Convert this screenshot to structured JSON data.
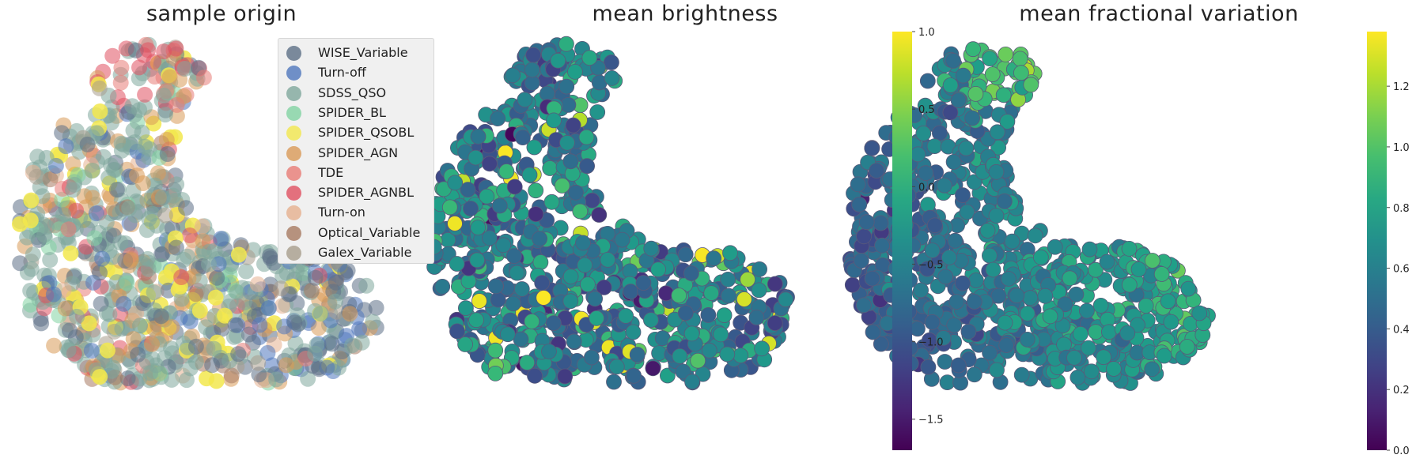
{
  "chart_data": [
    {
      "type": "scatter",
      "title": "sample origin",
      "legend": {
        "location": "top-right",
        "entries": [
          {
            "name": "WISE_Variable",
            "color": "#5c6f86"
          },
          {
            "name": "Turn-off",
            "color": "#4f77bd"
          },
          {
            "name": "SDSS_QSO",
            "color": "#7fa89c"
          },
          {
            "name": "SPIDER_BL",
            "color": "#82d3a3"
          },
          {
            "name": "SPIDER_QSOBL",
            "color": "#f2e74e"
          },
          {
            "name": "SPIDER_AGN",
            "color": "#d99a58"
          },
          {
            "name": "TDE",
            "color": "#e87c76"
          },
          {
            "name": "SPIDER_AGNBL",
            "color": "#e05060"
          },
          {
            "name": "Turn-on",
            "color": "#e6b08f"
          },
          {
            "name": "Optical_Variable",
            "color": "#a87a62"
          },
          {
            "name": "Galex_Variable",
            "color": "#a89d8c"
          }
        ]
      },
      "axes_visible": false
    },
    {
      "type": "scatter",
      "title": "mean brightness",
      "colormap": "viridis",
      "colorbar": {
        "range": [
          -1.7,
          1.0
        ],
        "ticks": [
          "1.0",
          "0.5",
          "0.0",
          "−0.5",
          "−1.0",
          "−1.5"
        ],
        "tick_values": [
          1.0,
          0.5,
          0.0,
          -0.5,
          -1.0,
          -1.5
        ]
      },
      "axes_visible": false
    },
    {
      "type": "scatter",
      "title": "mean fractional variation",
      "colormap": "viridis",
      "colorbar": {
        "range": [
          0.0,
          1.38
        ],
        "ticks": [
          "1.2",
          "1.0",
          "0.8",
          "0.6",
          "0.4",
          "0.2",
          "0.0"
        ],
        "tick_values": [
          1.2,
          1.0,
          0.8,
          0.6,
          0.4,
          0.2,
          0.0
        ]
      },
      "axes_visible": false
    }
  ]
}
